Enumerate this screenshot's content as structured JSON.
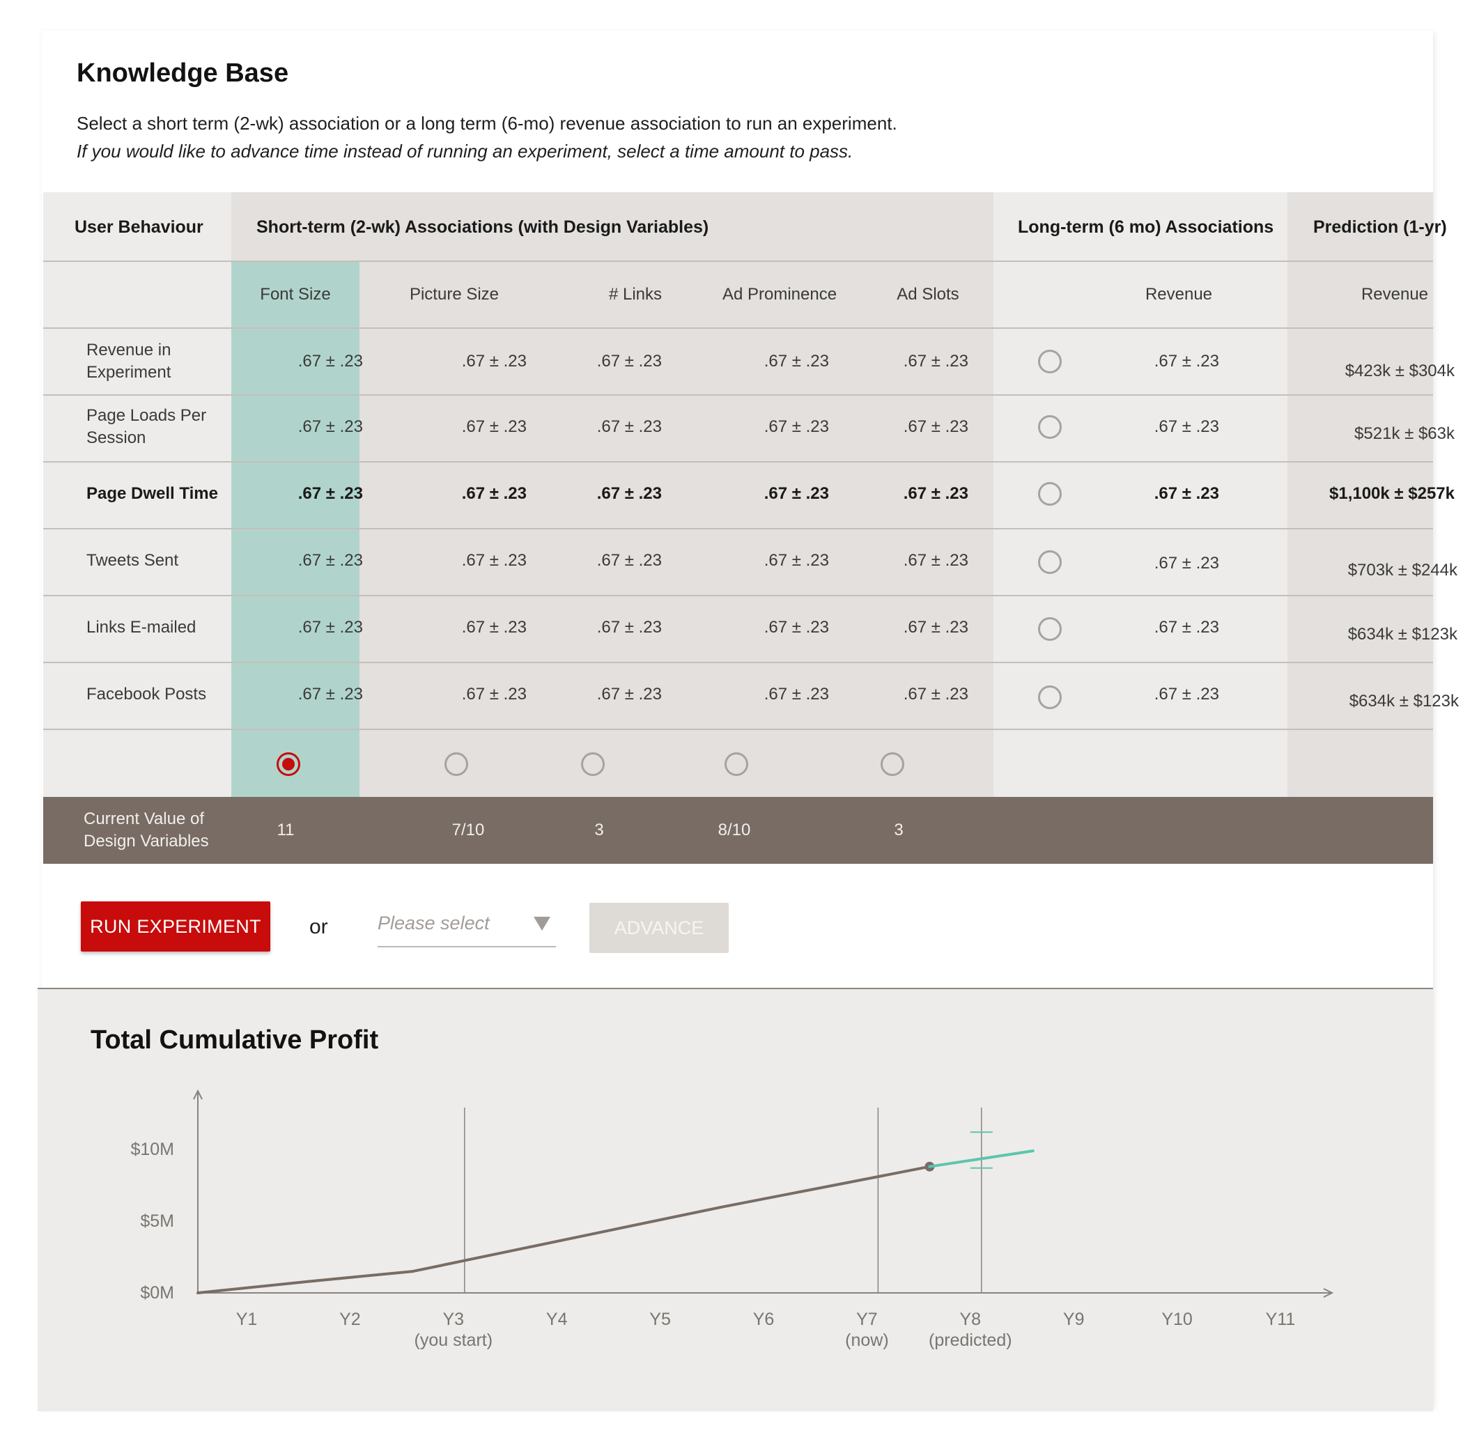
{
  "knowledge_base": {
    "title": "Knowledge Base",
    "instruction": "Select a short term (2-wk) association or a long term (6-mo) revenue association to run an experiment.",
    "instruction_italic": "If you would like to advance time instead of running an experiment, select a time amount to pass."
  },
  "table": {
    "headers": {
      "user_behaviour": "User Behaviour",
      "short_term": "Short-term (2-wk) Associations (with Design Variables)",
      "long_term": "Long-term (6 mo) Associations",
      "prediction": "Prediction (1-yr)"
    },
    "subheaders": {
      "font_size": "Font Size",
      "picture_size": "Picture Size",
      "links": "# Links",
      "ad_prominence": "Ad Prominence",
      "ad_slots": "Ad Slots",
      "long_revenue": "Revenue",
      "pred_revenue": "Revenue"
    },
    "rows": [
      {
        "label": "Revenue in Experiment",
        "values": [
          ".67 ± .23",
          ".67 ± .23",
          ".67 ± .23",
          ".67 ± .23",
          ".67 ± .23"
        ],
        "long": ".67 ± .23",
        "prediction": "$423k ± $304k",
        "bold": false
      },
      {
        "label": "Page Loads Per Session",
        "values": [
          ".67 ± .23",
          ".67 ± .23",
          ".67 ± .23",
          ".67 ± .23",
          ".67 ± .23"
        ],
        "long": ".67 ± .23",
        "prediction": "$521k ± $63k",
        "bold": false
      },
      {
        "label": "Page Dwell Time",
        "values": [
          ".67 ± .23",
          ".67 ± .23",
          ".67 ± .23",
          ".67 ± .23",
          ".67 ± .23"
        ],
        "long": ".67 ± .23",
        "prediction": "$1,100k ± $257k",
        "bold": true
      },
      {
        "label": "Tweets Sent",
        "values": [
          ".67 ± .23",
          ".67 ± .23",
          ".67 ± .23",
          ".67 ± .23",
          ".67 ± .23"
        ],
        "long": ".67 ± .23",
        "prediction": "$703k ± $244k",
        "bold": false
      },
      {
        "label": "Links E-mailed",
        "values": [
          ".67 ± .23",
          ".67 ± .23",
          ".67 ± .23",
          ".67 ± .23",
          ".67 ± .23"
        ],
        "long": ".67 ± .23",
        "prediction": "$634k ± $123k",
        "bold": false
      },
      {
        "label": "Facebook Posts",
        "values": [
          ".67 ± .23",
          ".67 ± .23",
          ".67 ± .23",
          ".67 ± .23",
          ".67 ± .23"
        ],
        "long": ".67 ± .23",
        "prediction": "$634k ± $123k",
        "bold": false
      }
    ],
    "selected_column": "Font Size",
    "current_values": {
      "label": "Current Value of Design Variables",
      "values": [
        "11",
        "7/10",
        "3",
        "8/10",
        "3"
      ]
    }
  },
  "actions": {
    "run_label": "RUN EXPERIMENT",
    "or_text": "or",
    "select_placeholder": "Please select",
    "advance_label": "ADVANCE"
  },
  "colors": {
    "accent_red": "#c80b0b",
    "selected_column": "#b0d4cb",
    "band": "#786c65",
    "predicted_line": "#5dc5ae",
    "history_line": "#786c65"
  },
  "chart_data": {
    "type": "line",
    "title": "Total Cumulative Profit",
    "x": [
      "Y1",
      "Y2",
      "Y3",
      "Y4",
      "Y5",
      "Y6",
      "Y7",
      "Y8",
      "Y9",
      "Y10",
      "Y11"
    ],
    "x_annotations": {
      "Y3": "(you start)",
      "Y7": "(now)",
      "Y8": "(predicted)"
    },
    "yticks": [
      "$0M",
      "$5M",
      "$10M"
    ],
    "ylim": [
      0,
      10
    ],
    "series": [
      {
        "values": [
          0,
          0.8,
          1.5,
          3.0,
          4.5,
          6.0,
          7.4,
          8.8,
          null,
          null,
          null
        ]
      },
      {
        "values": [
          null,
          null,
          null,
          null,
          null,
          null,
          null,
          8.8,
          9.9,
          null,
          null
        ]
      }
    ],
    "prediction_error": {
      "x": "Y8",
      "low": 8.7,
      "high": 11.2
    },
    "grid": false
  }
}
